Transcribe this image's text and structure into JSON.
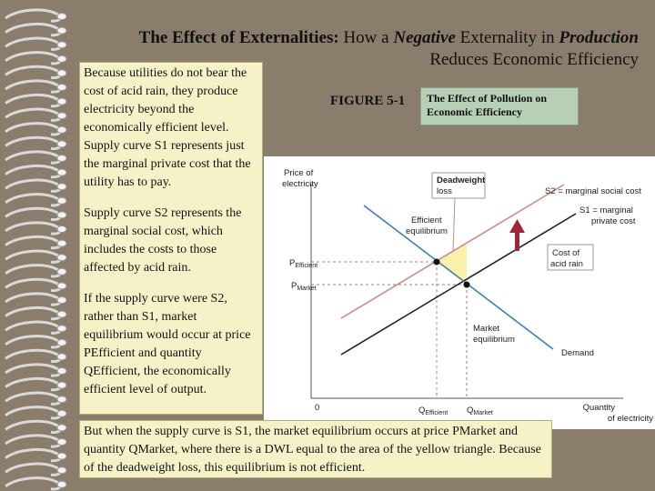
{
  "slide": {
    "title_bold": "The Effect of Externalities:",
    "title_part1": "How a",
    "title_italic1": "Negative",
    "title_part2": "Externality in",
    "title_italic2": "Production",
    "title_line2": "Reduces Economic Efficiency",
    "left_box": {
      "para1": "Because utilities do not bear the cost of acid rain, they produce electricity beyond the economically efficient level. Supply curve S1 represents just the marginal private cost that the utility has to pay.",
      "para2": "Supply curve S2 represents the marginal social cost, which includes the costs to those affected by acid rain.",
      "para3": "If the supply curve were S2, rather than S1, market equilibrium would occur at price PEfficient and quantity QEfficient, the economically efficient level of output."
    },
    "bottom_box": "But when the supply curve is S1, the market equilibrium occurs at price PMarket and quantity QMarket, where there is a DWL equal to the area of the yellow triangle. Because of the deadweight loss, this equilibrium is not efficient.",
    "figure_label": "FIGURE 5-1",
    "figure_caption": "The Effect of Pollution on Economic Efficiency"
  },
  "diagram": {
    "y_axis_label_1": "Price of",
    "y_axis_label_2": "electricity",
    "x_axis_label_1": "Quantity",
    "x_axis_label_2": "of electricity",
    "origin": "0",
    "p_efficient": "P",
    "p_efficient_sub": "Efficient",
    "p_market": "P",
    "p_market_sub": "Market",
    "q_efficient": "Q",
    "q_efficient_sub": "Efficient",
    "q_market": "Q",
    "q_market_sub": "Market",
    "dwl_1": "Deadweight",
    "dwl_2": "loss",
    "s2_label": "S2 = marginal social cost",
    "s1_label_1": "S1 = marginal",
    "s1_label_2": "private cost",
    "eff_eq_1": "Efficient",
    "eff_eq_2": "equilibrium",
    "cost_1": "Cost of",
    "cost_2": "acid rain",
    "mkt_eq_1": "Market",
    "mkt_eq_2": "equilibrium",
    "demand": "Demand",
    "colors": {
      "s2": "#d08a86",
      "s1": "#222222",
      "demand": "#3c7fc0",
      "dwl": "#fbf1a8",
      "arrow": "#a0243a"
    }
  }
}
